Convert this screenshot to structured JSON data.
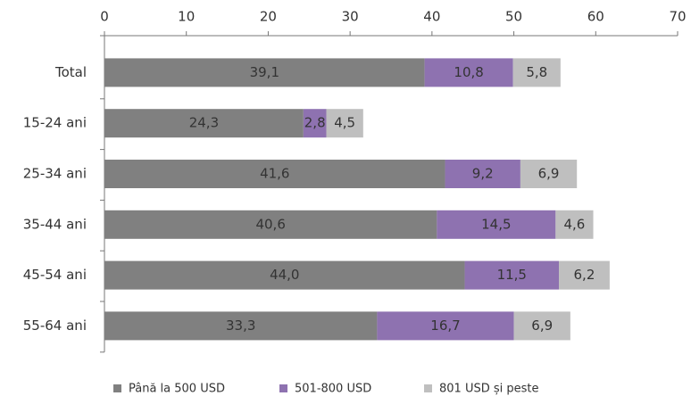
{
  "chart_data": {
    "type": "stacked-bar-horizontal",
    "categories": [
      "Total",
      "15-24 ani",
      "25-34 ani",
      "35-44 ani",
      "45-54 ani",
      "55-64 ani"
    ],
    "series": [
      {
        "name": "Până la 500 USD",
        "color": "#808080",
        "values": [
          39.1,
          24.3,
          41.6,
          40.6,
          44.0,
          33.3
        ],
        "value_labels": [
          "39,1",
          "24,3",
          "41,6",
          "40,6",
          "44,0",
          "33,3"
        ]
      },
      {
        "name": "501-800 USD",
        "color": "#8e72b0",
        "values": [
          10.8,
          2.8,
          9.2,
          14.5,
          11.5,
          16.7
        ],
        "value_labels": [
          "10,8",
          "2,8",
          "9,2",
          "14,5",
          "11,5",
          "16,7"
        ]
      },
      {
        "name": "801 USD și peste",
        "color": "#bfbfbf",
        "values": [
          5.8,
          4.5,
          6.9,
          4.6,
          6.2,
          6.9
        ],
        "value_labels": [
          "5,8",
          "4,5",
          "6,9",
          "4,6",
          "6,2",
          "6,9"
        ]
      }
    ],
    "xlim": [
      0,
      70
    ],
    "xticks": [
      0,
      10,
      20,
      30,
      40,
      50,
      60,
      70
    ],
    "legend": "bottom"
  }
}
